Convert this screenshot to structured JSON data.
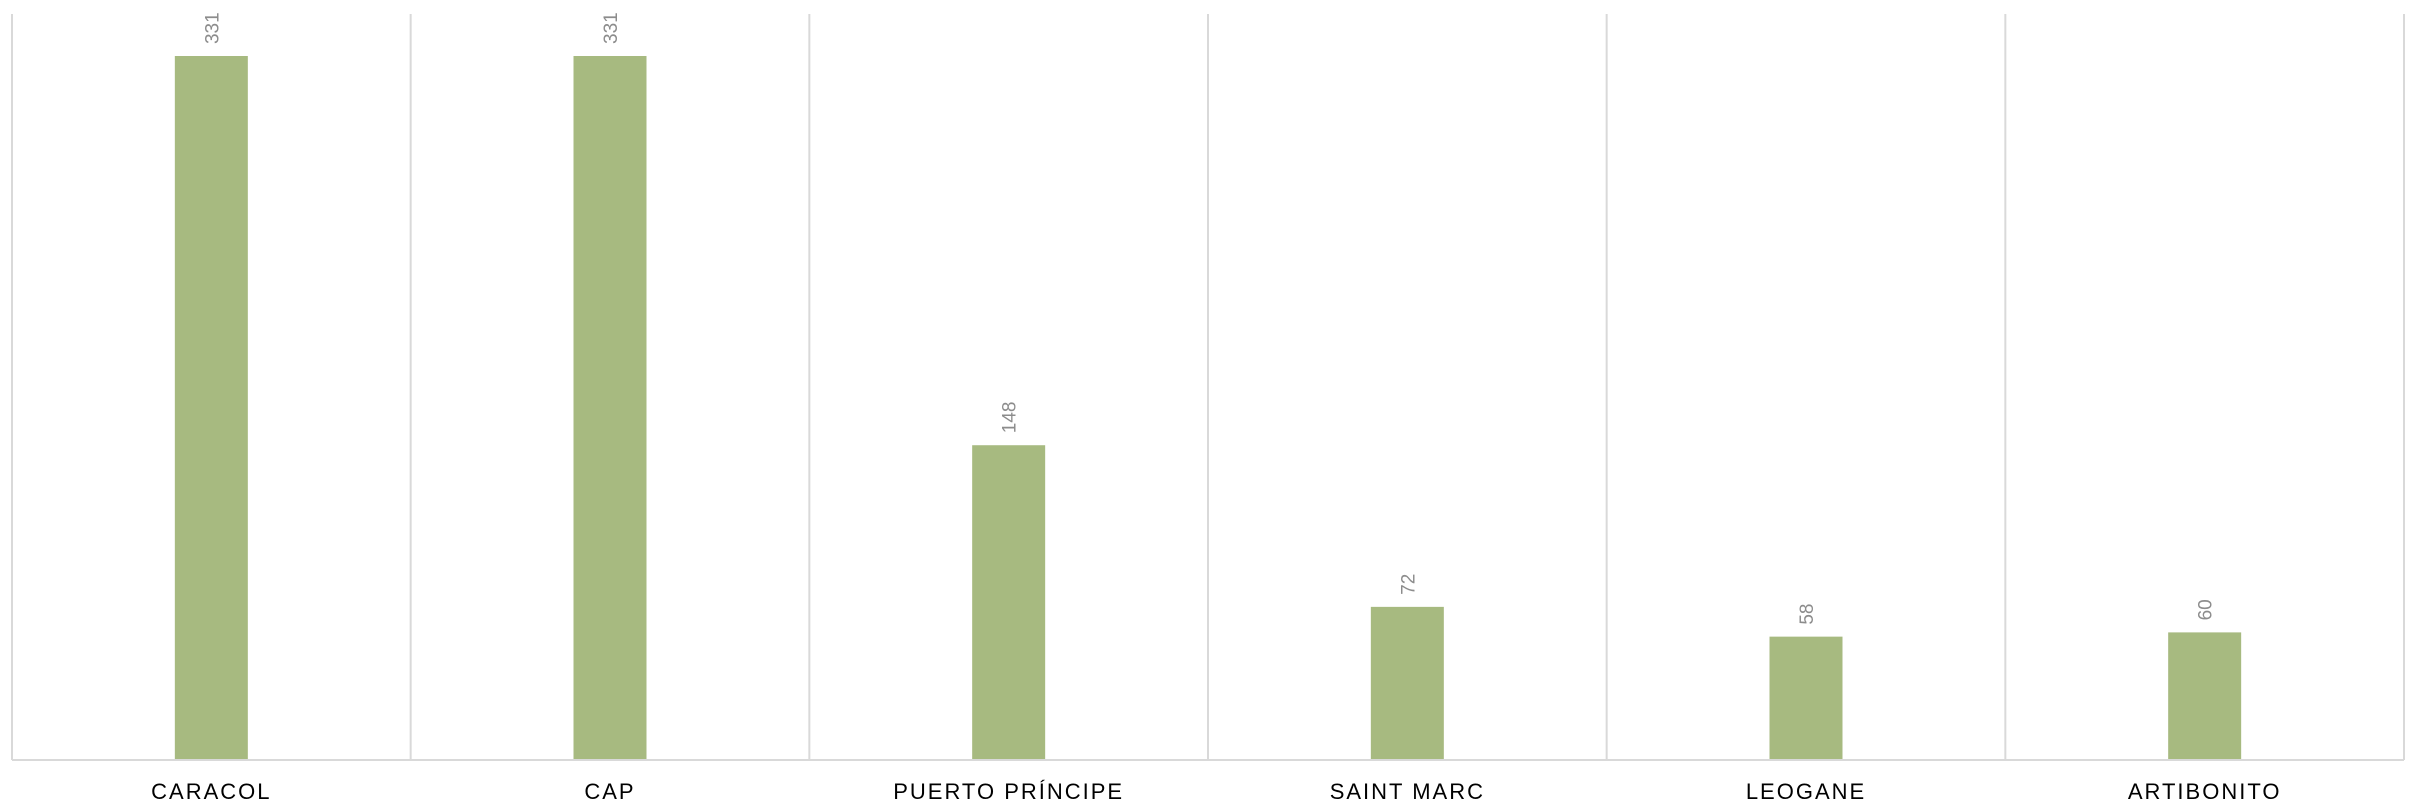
{
  "chart_data": {
    "type": "bar",
    "categories": [
      "CARACOL",
      "CAP",
      "PUERTO PRÍNCIPE",
      "SAINT MARC",
      "LEOGANE",
      "ARTIBONITO"
    ],
    "values": [
      331,
      331,
      148,
      72,
      58,
      60
    ],
    "data_labels": [
      "331",
      "331",
      "148",
      "72",
      "58",
      "60"
    ],
    "title": "",
    "xlabel": "",
    "ylabel": "",
    "ylim": [
      0,
      350
    ],
    "grid": "vertical category separators",
    "legend": "none",
    "colors": {
      "bar": "#A7BA80",
      "gridline": "#D9D9D9",
      "axis": "#D9D9D9",
      "value_label": "#8C8C8C",
      "category_label": "#000000"
    }
  }
}
